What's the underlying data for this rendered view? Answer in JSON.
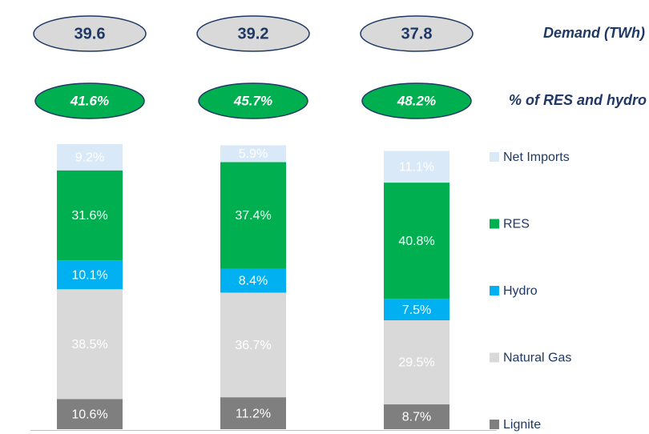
{
  "chart_data": {
    "type": "stacked-bar",
    "ylim": [
      0,
      100
    ],
    "series": [
      {
        "name": "Lignite",
        "color": "#7f7f7f",
        "values": [
          10.6,
          11.2,
          8.7
        ],
        "value_labels": [
          "10.6%",
          "11.2%",
          "8.7%"
        ]
      },
      {
        "name": "Natural Gas",
        "color": "#d9d9d9",
        "values": [
          38.5,
          36.7,
          29.5
        ],
        "value_labels": [
          "38.5%",
          "36.7%",
          "29.5%"
        ]
      },
      {
        "name": "Hydro",
        "color": "#00b0f0",
        "values": [
          10.1,
          8.4,
          7.5
        ],
        "value_labels": [
          "10.1%",
          "8.4%",
          "7.5%"
        ]
      },
      {
        "name": "RES",
        "color": "#00b050",
        "values": [
          31.6,
          37.4,
          40.8
        ],
        "value_labels": [
          "31.6%",
          "37.4%",
          "40.8%"
        ]
      },
      {
        "name": "Net Imports",
        "color": "#dae9f7",
        "values": [
          9.2,
          5.9,
          11.1
        ],
        "value_labels": [
          "9.2%",
          "5.9%",
          "11.1%"
        ]
      }
    ],
    "demand": {
      "label": "Demand (TWh)",
      "values": [
        39.6,
        39.2,
        37.8
      ]
    },
    "res_share": {
      "label": "% of RES and hydro",
      "values": [
        41.6,
        45.7,
        48.2
      ],
      "value_labels": [
        "41.6%",
        "45.7%",
        "48.2%"
      ]
    }
  }
}
